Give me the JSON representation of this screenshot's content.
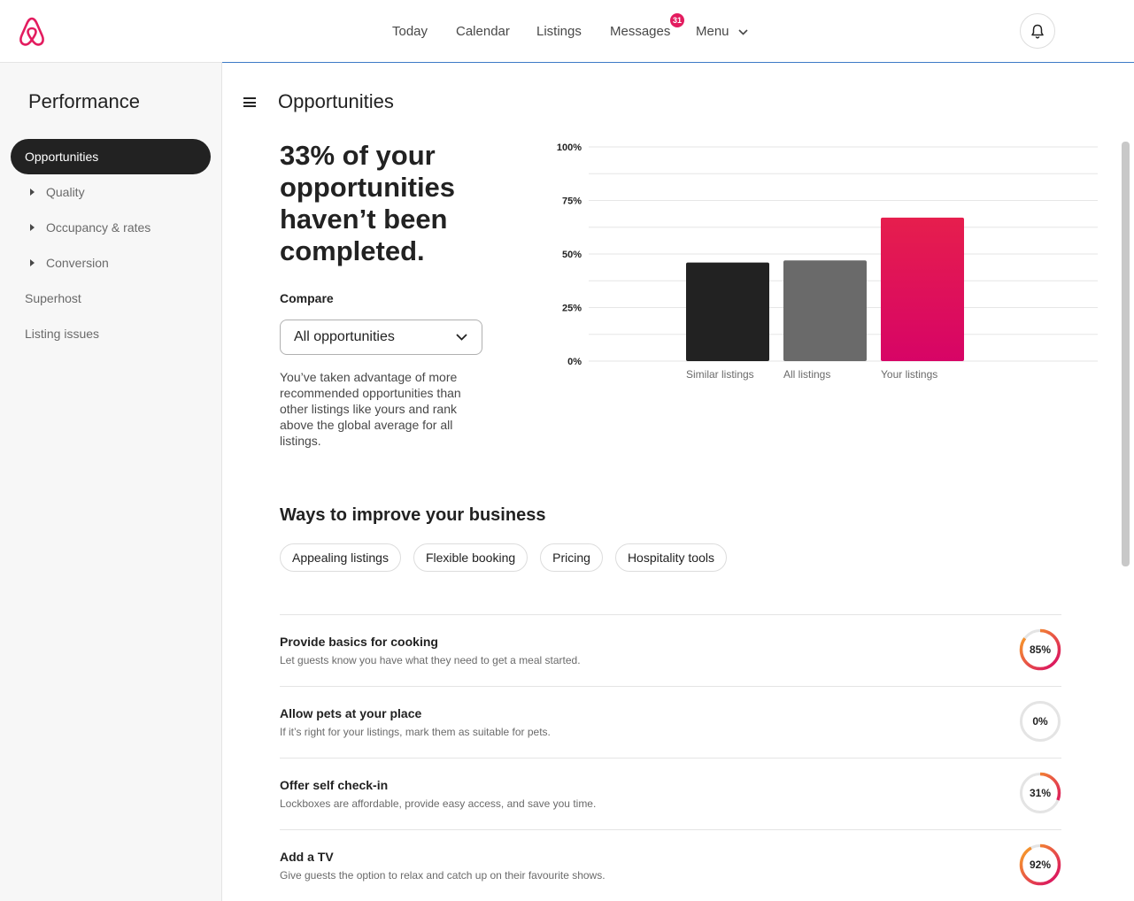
{
  "header": {
    "nav": [
      "Today",
      "Calendar",
      "Listings",
      "Messages",
      "Menu"
    ],
    "messages_badge": "31",
    "logo_icon": "airbnb-logo-icon",
    "bell_icon": "bell-icon"
  },
  "sidebar": {
    "title": "Performance",
    "active": "Opportunities",
    "items": [
      "Quality",
      "Occupancy & rates",
      "Conversion",
      "Superhost",
      "Listing issues"
    ]
  },
  "main": {
    "title": "Opportunities",
    "headline": "33% of your opportunities haven’t been completed.",
    "compare_label": "Compare",
    "compare_value": "All opportunities",
    "description": "You’ve taken advantage of more recommended opportunities than other listings like yours and rank above the global average for all listings.",
    "section_title": "Ways to improve your business",
    "chips": [
      "Appealing listings",
      "Flexible booking",
      "Pricing",
      "Hospitality tools"
    ]
  },
  "opportunities": [
    {
      "title": "Provide basics for cooking",
      "subtitle": "Let guests know you have what they need to get a meal started.",
      "percent_label": "85%",
      "percent": 85
    },
    {
      "title": "Allow pets at your place",
      "subtitle": "If it’s right for your listings, mark them as suitable for pets.",
      "percent_label": "0%",
      "percent": 0
    },
    {
      "title": "Offer self check-in",
      "subtitle": "Lockboxes are affordable, provide easy access, and save you time.",
      "percent_label": "31%",
      "percent": 31
    },
    {
      "title": "Add a TV",
      "subtitle": "Give guests the option to relax and catch up on their favourite shows.",
      "percent_label": "92%",
      "percent": 92
    }
  ],
  "colors": {
    "accent": "#e31c5f",
    "bar_similar": "#222222",
    "bar_all": "#6a6a6a",
    "ring_start": "#f9a825",
    "ring_end": "#d70466"
  },
  "chart_data": {
    "type": "bar",
    "categories": [
      "Similar listings",
      "All listings",
      "Your listings"
    ],
    "values": [
      46,
      47,
      67
    ],
    "yticks": [
      "0%",
      "25%",
      "50%",
      "75%",
      "100%"
    ],
    "ylim": [
      0,
      100
    ],
    "grid": true
  }
}
